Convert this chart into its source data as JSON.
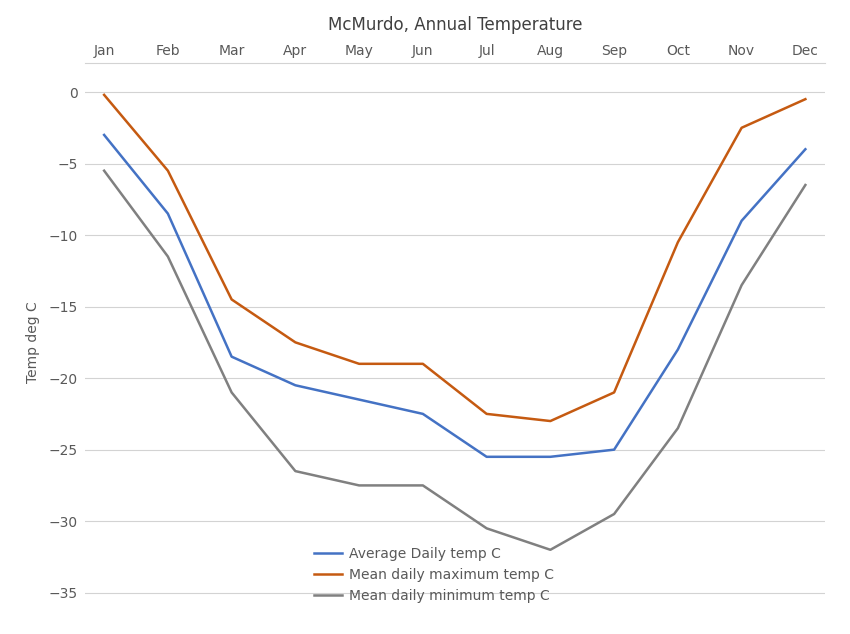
{
  "title": "McMurdo, Annual Temperature",
  "ylabel": "Temp deg C",
  "months": [
    "Jan",
    "Feb",
    "Mar",
    "Apr",
    "May",
    "Jun",
    "Jul",
    "Aug",
    "Sep",
    "Oct",
    "Nov",
    "Dec"
  ],
  "avg_daily": [
    -3.0,
    -8.5,
    -18.5,
    -20.5,
    -21.5,
    -22.5,
    -25.5,
    -25.5,
    -25.0,
    -18.0,
    -9.0,
    -4.0
  ],
  "mean_max": [
    -0.2,
    -5.5,
    -14.5,
    -17.5,
    -19.0,
    -19.0,
    -22.5,
    -23.0,
    -21.0,
    -10.5,
    -2.5,
    -0.5
  ],
  "mean_min": [
    -5.5,
    -11.5,
    -21.0,
    -26.5,
    -27.5,
    -27.5,
    -30.5,
    -32.0,
    -29.5,
    -23.5,
    -13.5,
    -6.5
  ],
  "avg_color": "#4472c4",
  "max_color": "#c55a11",
  "min_color": "#808080",
  "ylim": [
    -37,
    2
  ],
  "yticks": [
    0,
    -5,
    -10,
    -15,
    -20,
    -25,
    -30,
    -35
  ],
  "legend_labels": [
    "Average Daily temp C",
    "Mean daily maximum temp C",
    "Mean daily minimum temp C"
  ],
  "bg_color": "#ffffff",
  "grid_color": "#d3d3d3",
  "title_color": "#404040",
  "axis_label_color": "#595959",
  "tick_label_color": "#595959",
  "line_width": 1.8
}
